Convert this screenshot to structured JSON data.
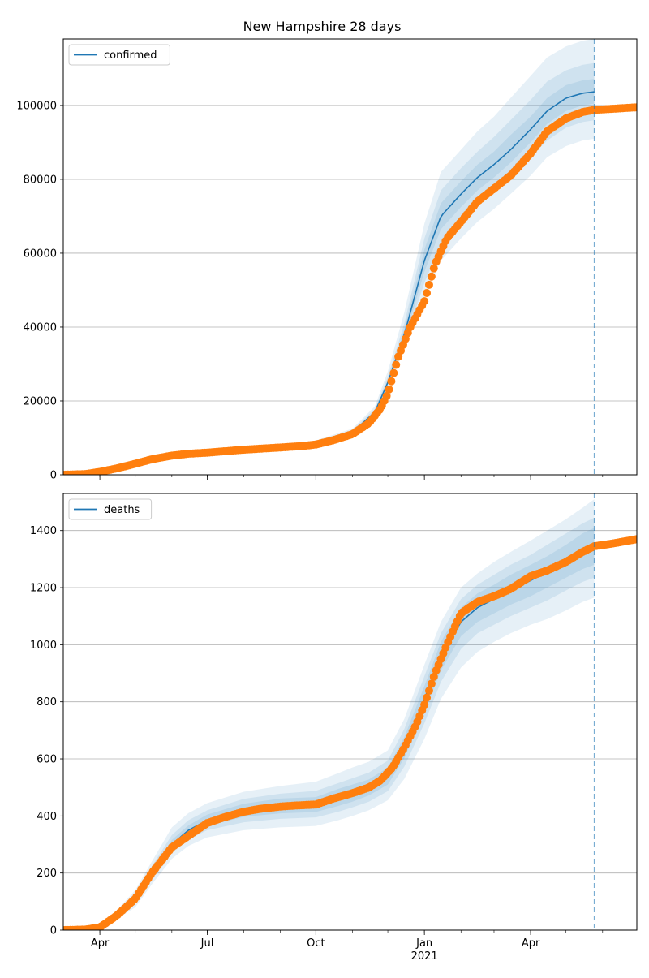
{
  "chart_data": [
    {
      "type": "line",
      "title": "New Hampshire 28 days",
      "xlabel": "",
      "ylabel": "",
      "x_range": [
        "2020-03-01",
        "2021-06-30"
      ],
      "ylim": [
        0,
        118000
      ],
      "yticks": [
        0,
        20000,
        40000,
        60000,
        80000,
        100000
      ],
      "grid": "horizontal",
      "legend": {
        "position": "top-left",
        "entries": [
          "confirmed"
        ]
      },
      "forecast_start": "2021-05-25",
      "series": [
        {
          "name": "confirmed",
          "kind": "model",
          "color": "#1f77b4",
          "x": [
            "2020-03-01",
            "2020-04-01",
            "2020-05-01",
            "2020-06-01",
            "2020-07-01",
            "2020-08-01",
            "2020-09-01",
            "2020-10-01",
            "2020-11-01",
            "2020-11-20",
            "2020-12-01",
            "2020-12-15",
            "2021-01-01",
            "2021-01-15",
            "2021-02-01",
            "2021-02-15",
            "2021-03-01",
            "2021-03-15",
            "2021-04-01",
            "2021-04-15",
            "2021-05-01",
            "2021-05-15",
            "2021-05-25"
          ],
          "y": [
            0,
            800,
            3200,
            5200,
            6000,
            6800,
            7500,
            8600,
            11500,
            17000,
            25000,
            38000,
            58000,
            70000,
            76000,
            80500,
            84000,
            88000,
            93500,
            98500,
            102000,
            103300,
            103700
          ],
          "bands": {
            "outer": {
              "lower": [
                0,
                700,
                2900,
                4800,
                5600,
                6300,
                7000,
                8000,
                10800,
                16000,
                23500,
                34000,
                48000,
                58000,
                64000,
                68500,
                72000,
                76000,
                81000,
                86000,
                89000,
                90500,
                91000
              ],
              "upper": [
                0,
                900,
                3500,
                5600,
                6500,
                7300,
                8100,
                9300,
                12500,
                18500,
                28000,
                44000,
                68000,
                82000,
                88000,
                93000,
                97000,
                102000,
                108000,
                113000,
                116000,
                117500,
                118000
              ]
            },
            "middle": {
              "lower": [
                0,
                740,
                3000,
                4950,
                5750,
                6500,
                7200,
                8250,
                11000,
                16400,
                24100,
                35500,
                52000,
                62500,
                68500,
                73000,
                76500,
                80500,
                86000,
                90500,
                94000,
                95500,
                96000
              ],
              "upper": [
                0,
                860,
                3400,
                5450,
                6300,
                7100,
                7850,
                9000,
                12100,
                17800,
                26500,
                41000,
                64000,
                77000,
                83000,
                87500,
                91500,
                96000,
                101500,
                106500,
                109500,
                111000,
                111500
              ]
            },
            "inner": {
              "lower": [
                0,
                770,
                3100,
                5080,
                5870,
                6650,
                7350,
                8420,
                11250,
                16700,
                24500,
                36500,
                55000,
                66500,
                72500,
                77000,
                80500,
                84500,
                90000,
                95000,
                98500,
                100000,
                100500
              ],
              "upper": [
                0,
                830,
                3300,
                5320,
                6130,
                6950,
                7650,
                8780,
                11750,
                17300,
                25500,
                39500,
                61000,
                73500,
                79500,
                84000,
                87500,
                92000,
                97000,
                102000,
                105500,
                106800,
                107200
              ]
            }
          }
        },
        {
          "name": "observed",
          "kind": "observed",
          "color": "#ff7f0e",
          "x": [
            "2020-03-01",
            "2020-03-20",
            "2020-04-01",
            "2020-04-15",
            "2020-05-01",
            "2020-05-15",
            "2020-06-01",
            "2020-06-15",
            "2020-07-01",
            "2020-08-01",
            "2020-09-01",
            "2020-09-20",
            "2020-10-01",
            "2020-10-15",
            "2020-11-01",
            "2020-11-15",
            "2020-11-25",
            "2020-12-01",
            "2020-12-10",
            "2020-12-20",
            "2021-01-01",
            "2021-01-10",
            "2021-01-20",
            "2021-02-01",
            "2021-02-15",
            "2021-03-01",
            "2021-03-15",
            "2021-04-01",
            "2021-04-15",
            "2021-05-01",
            "2021-05-15",
            "2021-05-25",
            "2021-06-10",
            "2021-06-30"
          ],
          "y": [
            0,
            200,
            800,
            1700,
            3000,
            4200,
            5200,
            5700,
            6000,
            6800,
            7400,
            7800,
            8200,
            9300,
            11000,
            14000,
            18000,
            22000,
            32000,
            40000,
            47000,
            57000,
            64000,
            68500,
            74000,
            77500,
            81000,
            87000,
            93000,
            96500,
            98200,
            98800,
            99100,
            99500
          ]
        }
      ]
    },
    {
      "type": "line",
      "title": "",
      "xlabel": "",
      "ylabel": "",
      "x_range": [
        "2020-03-01",
        "2021-06-30"
      ],
      "ylim": [
        0,
        1530
      ],
      "yticks": [
        0,
        200,
        400,
        600,
        800,
        1000,
        1200,
        1400
      ],
      "xticks": [
        {
          "date": "2020-04-01",
          "label": "Apr"
        },
        {
          "date": "2020-07-01",
          "label": "Jul"
        },
        {
          "date": "2020-10-01",
          "label": "Oct"
        },
        {
          "date": "2021-01-01",
          "label": "Jan",
          "sublabel": "2021"
        },
        {
          "date": "2021-04-01",
          "label": "Apr"
        }
      ],
      "grid": "horizontal",
      "legend": {
        "position": "top-left",
        "entries": [
          "deaths"
        ]
      },
      "forecast_start": "2021-05-25",
      "series": [
        {
          "name": "deaths",
          "kind": "model",
          "color": "#1f77b4",
          "x": [
            "2020-03-01",
            "2020-03-25",
            "2020-04-10",
            "2020-05-01",
            "2020-05-15",
            "2020-06-01",
            "2020-06-15",
            "2020-07-01",
            "2020-08-01",
            "2020-09-01",
            "2020-10-01",
            "2020-10-20",
            "2020-11-01",
            "2020-11-15",
            "2020-12-01",
            "2020-12-15",
            "2021-01-01",
            "2021-01-15",
            "2021-02-01",
            "2021-02-15",
            "2021-03-01",
            "2021-03-15",
            "2021-04-01",
            "2021-04-15",
            "2021-05-01",
            "2021-05-15",
            "2021-05-25"
          ],
          "y": [
            0,
            5,
            35,
            110,
            200,
            300,
            350,
            385,
            420,
            435,
            440,
            465,
            480,
            500,
            540,
            640,
            810,
            960,
            1080,
            1130,
            1160,
            1190,
            1225,
            1255,
            1295,
            1330,
            1345
          ],
          "bands": {
            "outer": {
              "lower": [
                0,
                3,
                25,
                80,
                160,
                250,
                295,
                325,
                350,
                360,
                365,
                385,
                400,
                420,
                455,
                530,
                670,
                810,
                920,
                975,
                1010,
                1040,
                1070,
                1090,
                1120,
                1150,
                1165
              ],
              "upper": [
                0,
                7,
                45,
                140,
                240,
                360,
                410,
                445,
                485,
                505,
                520,
                550,
                570,
                590,
                630,
                740,
                930,
                1080,
                1200,
                1250,
                1290,
                1325,
                1365,
                1400,
                1440,
                1480,
                1510
              ]
            },
            "middle": {
              "lower": [
                0,
                4,
                29,
                92,
                176,
                270,
                318,
                350,
                378,
                390,
                395,
                415,
                430,
                450,
                487,
                573,
                725,
                870,
                985,
                1040,
                1070,
                1100,
                1130,
                1155,
                1190,
                1220,
                1235
              ],
              "upper": [
                0,
                6,
                41,
                128,
                224,
                333,
                385,
                420,
                460,
                478,
                488,
                515,
                532,
                552,
                594,
                705,
                890,
                1040,
                1160,
                1210,
                1245,
                1280,
                1315,
                1350,
                1390,
                1425,
                1445
              ]
            },
            "inner": {
              "lower": [
                0,
                4.5,
                32,
                100,
                186,
                284,
                333,
                365,
                397,
                409,
                414,
                435,
                450,
                472,
                510,
                603,
                765,
                910,
                1030,
                1080,
                1110,
                1140,
                1170,
                1200,
                1235,
                1265,
                1280
              ],
              "upper": [
                0,
                5.5,
                38,
                120,
                214,
                316,
                367,
                405,
                443,
                461,
                466,
                495,
                510,
                528,
                570,
                677,
                855,
                1010,
                1130,
                1180,
                1210,
                1245,
                1280,
                1310,
                1350,
                1390,
                1410
              ]
            }
          }
        },
        {
          "name": "observed",
          "kind": "observed",
          "color": "#ff7f0e",
          "x": [
            "2020-03-01",
            "2020-03-20",
            "2020-04-01",
            "2020-04-15",
            "2020-05-01",
            "2020-05-15",
            "2020-06-01",
            "2020-06-15",
            "2020-07-01",
            "2020-07-15",
            "2020-08-01",
            "2020-08-15",
            "2020-09-01",
            "2020-09-15",
            "2020-10-01",
            "2020-10-15",
            "2020-11-01",
            "2020-11-15",
            "2020-11-25",
            "2020-12-05",
            "2020-12-15",
            "2020-12-25",
            "2021-01-01",
            "2021-01-10",
            "2021-01-20",
            "2021-02-01",
            "2021-02-15",
            "2021-03-01",
            "2021-03-15",
            "2021-04-01",
            "2021-04-15",
            "2021-05-01",
            "2021-05-15",
            "2021-05-25",
            "2021-06-10",
            "2021-06-30"
          ],
          "y": [
            0,
            2,
            10,
            50,
            110,
            200,
            290,
            330,
            375,
            395,
            415,
            425,
            433,
            437,
            440,
            460,
            480,
            500,
            525,
            570,
            640,
            720,
            790,
            900,
            1000,
            1110,
            1150,
            1170,
            1195,
            1240,
            1260,
            1290,
            1325,
            1345,
            1355,
            1370
          ]
        }
      ]
    }
  ]
}
